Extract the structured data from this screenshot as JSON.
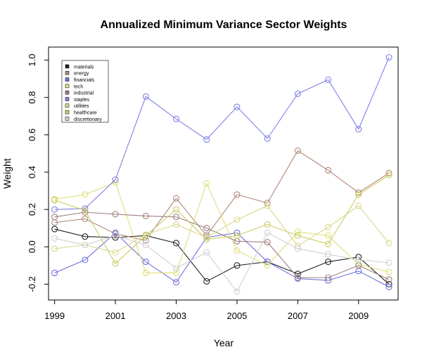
{
  "chart_data": {
    "type": "line",
    "title": "Annualized Minimum Variance Sector Weights",
    "xlabel": "Year",
    "ylabel": "Weight",
    "x": [
      1999,
      2000,
      2001,
      2002,
      2003,
      2004,
      2005,
      2006,
      2007,
      2008,
      2009,
      2010
    ],
    "x_ticks": [
      1999,
      2001,
      2003,
      2005,
      2007,
      2009
    ],
    "x_tick_labels": [
      "1999",
      "2001",
      "2003",
      "2005",
      "2007",
      "2009"
    ],
    "xlim": [
      1998.8,
      2010.3
    ],
    "ylim": [
      -0.285,
      1.07
    ],
    "y_ticks": [
      -0.2,
      0.0,
      0.2,
      0.4,
      0.6,
      0.8,
      1.0
    ],
    "y_tick_labels": [
      "-0.2",
      "0.0",
      "0.2",
      "0.4",
      "0.6",
      "0.8",
      "1.0"
    ],
    "grid": false,
    "legend_position": "top-left",
    "series": [
      {
        "name": "materials",
        "color": "#222222",
        "values": [
          0.095,
          0.055,
          0.05,
          0.06,
          0.02,
          -0.185,
          -0.1,
          -0.08,
          -0.145,
          -0.08,
          -0.055,
          -0.2
        ]
      },
      {
        "name": "energy",
        "color": "#b08878",
        "values": [
          0.13,
          0.15,
          0.07,
          0.035,
          0.26,
          0.06,
          0.28,
          0.235,
          0.515,
          0.41,
          0.29,
          0.395
        ]
      },
      {
        "name": "financials",
        "color": "#7070e0",
        "values": [
          -0.14,
          -0.07,
          0.075,
          -0.08,
          -0.19,
          0.05,
          0.075,
          -0.08,
          -0.17,
          -0.18,
          -0.13,
          -0.215
        ]
      },
      {
        "name": "tech",
        "color": "#dede7a",
        "values": [
          0.255,
          0.28,
          0.345,
          -0.14,
          -0.14,
          0.34,
          -0.02,
          -0.1,
          0.08,
          0.06,
          -0.095,
          -0.135
        ]
      },
      {
        "name": "industrial",
        "color": "#a08080",
        "values": [
          0.16,
          0.185,
          0.175,
          0.165,
          0.16,
          0.1,
          0.03,
          0.025,
          -0.165,
          -0.165,
          -0.1,
          -0.175
        ]
      },
      {
        "name": "staples",
        "color": "#8080e8",
        "values": [
          0.2,
          0.205,
          0.36,
          0.805,
          0.685,
          0.575,
          0.75,
          0.58,
          0.82,
          0.895,
          0.63,
          1.015
        ]
      },
      {
        "name": "utilities",
        "color": "#d8d890",
        "values": [
          -0.01,
          0.01,
          -0.03,
          0.065,
          0.12,
          0.05,
          0.145,
          0.22,
          0.005,
          0.105,
          0.22,
          0.02
        ]
      },
      {
        "name": "healthcare",
        "color": "#cccc66",
        "values": [
          0.25,
          0.195,
          -0.09,
          0.06,
          0.2,
          0.04,
          0.06,
          0.12,
          0.06,
          0.015,
          0.28,
          0.385
        ]
      },
      {
        "name": "discretionary",
        "color": "#d0d0d0",
        "values": [
          0.045,
          0.01,
          0.06,
          0.01,
          -0.115,
          -0.03,
          -0.24,
          0.075,
          -0.01,
          -0.04,
          -0.07,
          -0.085
        ]
      }
    ]
  }
}
